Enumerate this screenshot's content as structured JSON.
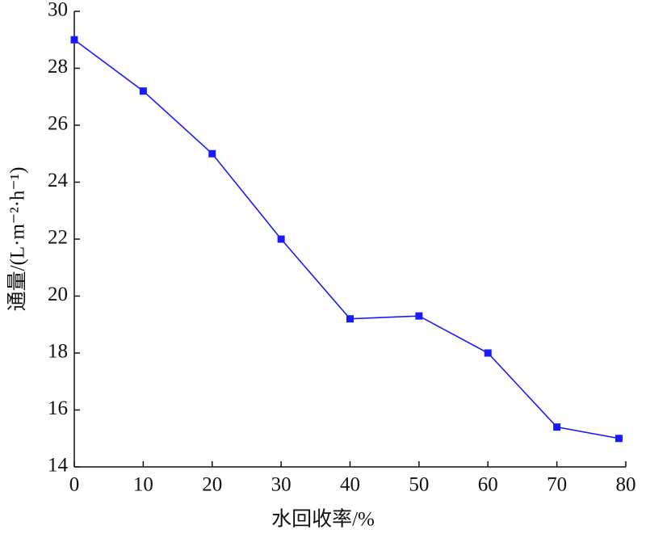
{
  "chart_data": {
    "type": "line",
    "xlabel": "水回收率/%",
    "ylabel": "通量/(L·m⁻²·h⁻¹)",
    "x": [
      0,
      10,
      20,
      30,
      40,
      50,
      60,
      70,
      79
    ],
    "series": [
      {
        "name": null,
        "color": "#1a1aff",
        "values": [
          29,
          27.2,
          25,
          22,
          19.2,
          19.3,
          18,
          15.4,
          15
        ]
      }
    ],
    "xlim": [
      0,
      80
    ],
    "xticks": [
      0,
      10,
      20,
      30,
      40,
      50,
      60,
      70,
      80
    ],
    "ylim": [
      14,
      30
    ],
    "yticks": [
      14,
      16,
      18,
      20,
      22,
      24,
      26,
      28,
      30
    ],
    "grid": false
  }
}
